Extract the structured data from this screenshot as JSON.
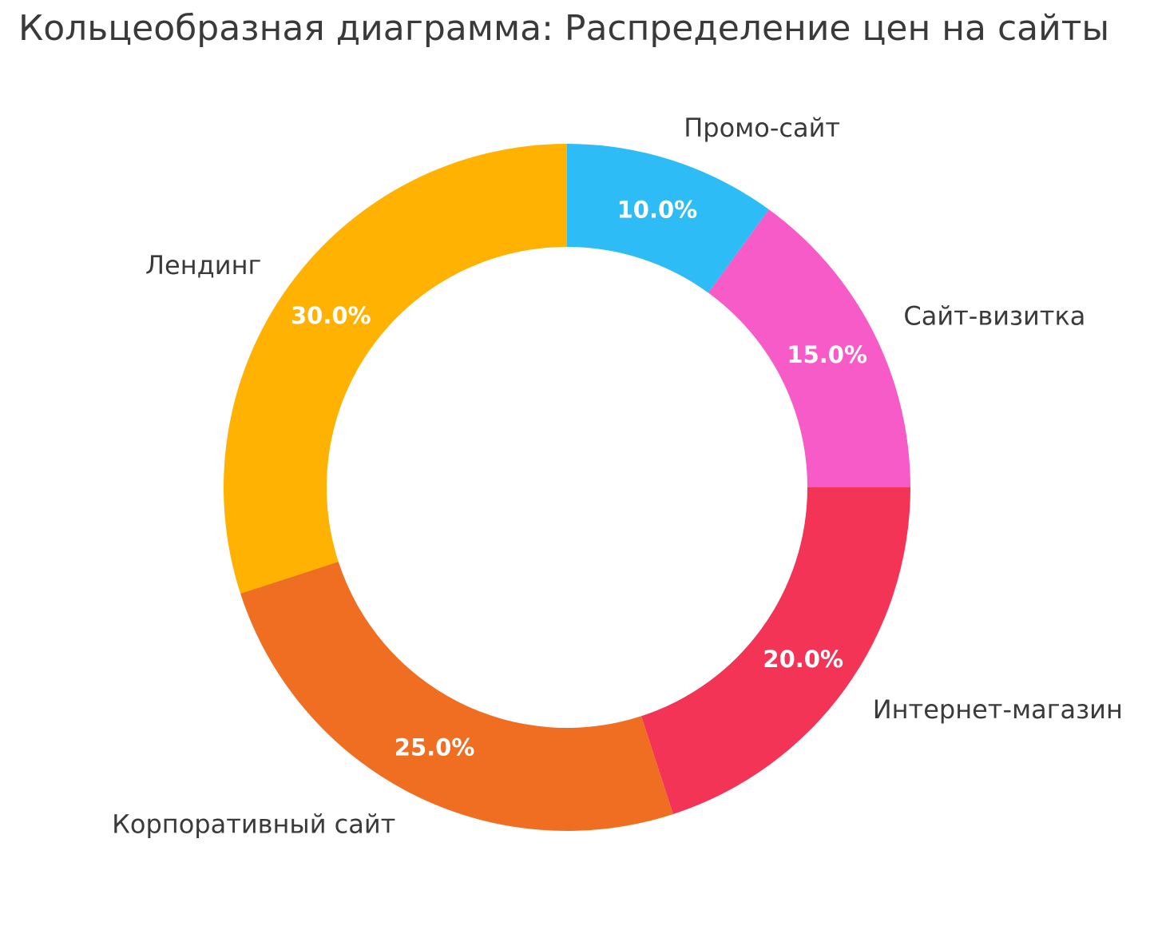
{
  "title": "Кольцеобразная диаграмма: Распределение цен на сайты",
  "colors": {
    "background": "#FFFFFF",
    "text": "#3A3A3A",
    "percent_text": "#FFFFFF"
  },
  "chart_data": {
    "type": "pie",
    "variant": "donut",
    "title": "Кольцеобразная диаграмма: Распределение цен на сайты",
    "categories": [
      "Промо-сайт",
      "Сайт-визитка",
      "Интернет-магазин",
      "Корпоративный сайт",
      "Лендинг"
    ],
    "values": [
      10.0,
      15.0,
      20.0,
      25.0,
      30.0
    ],
    "unit": "percent",
    "percent_labels": [
      "10.0%",
      "15.0%",
      "20.0%",
      "25.0%",
      "30.0%"
    ],
    "colors": [
      "#2DBCF5",
      "#F65BC8",
      "#F43457",
      "#F06E22",
      "#FFB202"
    ],
    "start_angle": "top",
    "direction": "clockwise",
    "donut_hole_ratio": 0.7,
    "legend": false,
    "labels_position": "outside"
  }
}
